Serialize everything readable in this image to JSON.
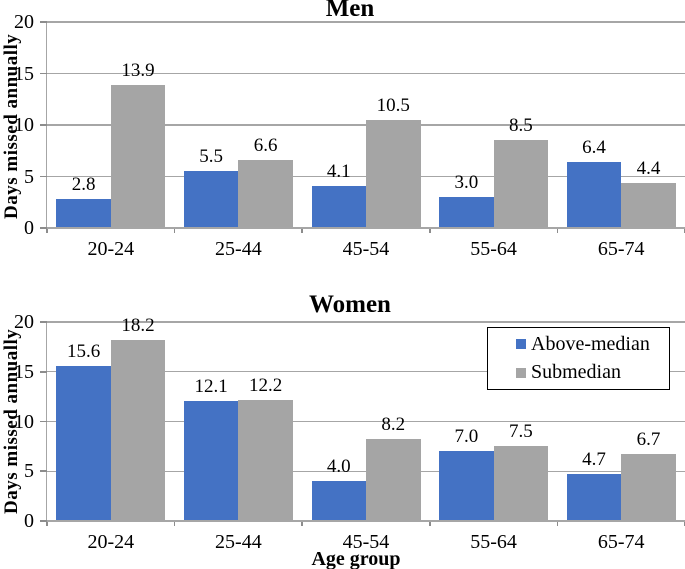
{
  "figure": {
    "background": "#ffffff"
  },
  "colors": {
    "above_median": "#4472c4",
    "submedian": "#a5a5a5",
    "gridline": "#a6a6a6",
    "axis": "#a6a6a6",
    "legend_border": "#000000",
    "text": "#000000"
  },
  "legend": {
    "items": [
      {
        "label": "Above-median",
        "color_key": "above_median"
      },
      {
        "label": "Submedian",
        "color_key": "submedian"
      }
    ],
    "position": "top-right-inside-women-chart"
  },
  "chart_data": [
    {
      "id": "men",
      "type": "bar",
      "title": "Men",
      "ylabel": "Days missed annually",
      "xlabel": "",
      "ylim": [
        0,
        20
      ],
      "yticks": [
        0,
        5,
        10,
        15,
        20
      ],
      "grid": true,
      "categories": [
        "20-24",
        "25-44",
        "45-54",
        "55-64",
        "65-74"
      ],
      "series": [
        {
          "name": "Above-median",
          "color_key": "above_median",
          "values": [
            2.8,
            5.5,
            4.1,
            3.0,
            6.4
          ]
        },
        {
          "name": "Submedian",
          "color_key": "submedian",
          "values": [
            13.9,
            6.6,
            10.5,
            8.5,
            4.4
          ]
        }
      ],
      "value_label_decimals": 1
    },
    {
      "id": "women",
      "type": "bar",
      "title": "Women",
      "ylabel": "Days missed annually",
      "xlabel": "Age group",
      "ylim": [
        0,
        20
      ],
      "yticks": [
        0,
        5,
        10,
        15,
        20
      ],
      "grid": true,
      "categories": [
        "20-24",
        "25-44",
        "45-54",
        "55-64",
        "65-74"
      ],
      "series": [
        {
          "name": "Above-median",
          "color_key": "above_median",
          "values": [
            15.6,
            12.1,
            4.0,
            7.0,
            4.7
          ]
        },
        {
          "name": "Submedian",
          "color_key": "submedian",
          "values": [
            18.2,
            12.2,
            8.2,
            7.5,
            6.7
          ]
        }
      ],
      "value_label_decimals": 1
    }
  ]
}
